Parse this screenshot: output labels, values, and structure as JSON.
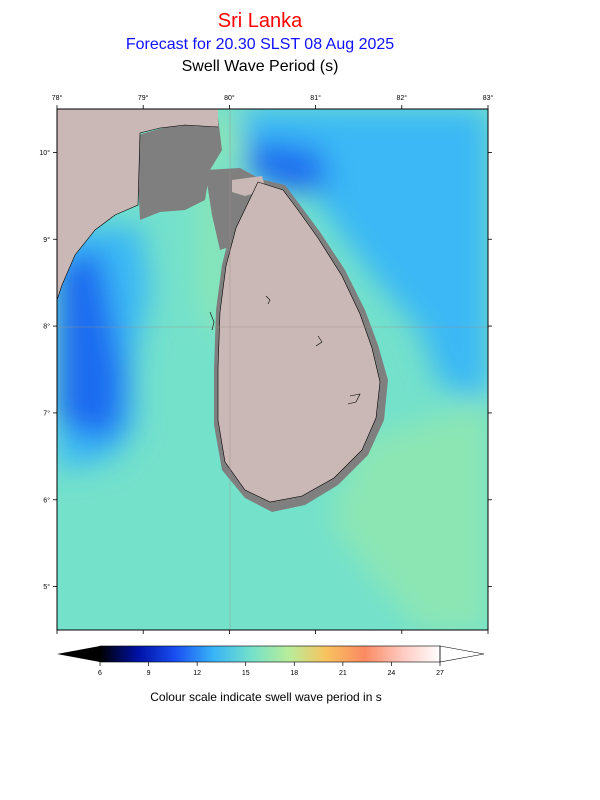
{
  "header": {
    "region": "Sri Lanka",
    "forecast": "Forecast for  20.30 SLST 08 Aug 2025",
    "parameter": "Swell Wave Period (s)"
  },
  "map": {
    "lon_ticks": [
      "78°",
      "79°",
      "80°",
      "81°",
      "82°",
      "83°"
    ],
    "lat_ticks": [
      "10°",
      "9°",
      "8°",
      "7°",
      "6°",
      "5°"
    ],
    "lon_range": [
      78,
      83
    ],
    "lat_range": [
      4.5,
      10.5
    ],
    "colors": {
      "land": "#c9b8b5",
      "shelf": "#7f7f7f",
      "sea_base": "#74e1cb",
      "sea_blue": "#3ab8f5",
      "sea_dark": "#1f6cf0",
      "sea_green": "#8ce6b4"
    }
  },
  "colorbar": {
    "tick_labels": [
      "6",
      "9",
      "12",
      "15",
      "18",
      "21",
      "24",
      "27"
    ],
    "range": [
      6,
      27
    ],
    "stops": [
      "#000000",
      "#0011a5",
      "#1a4ff2",
      "#38b4f7",
      "#74e1cb",
      "#b8ec9a",
      "#f9c25e",
      "#fa8a62",
      "#ffc9c0",
      "#ffffff"
    ],
    "caption": "Colour scale indicate swell wave period in s"
  }
}
